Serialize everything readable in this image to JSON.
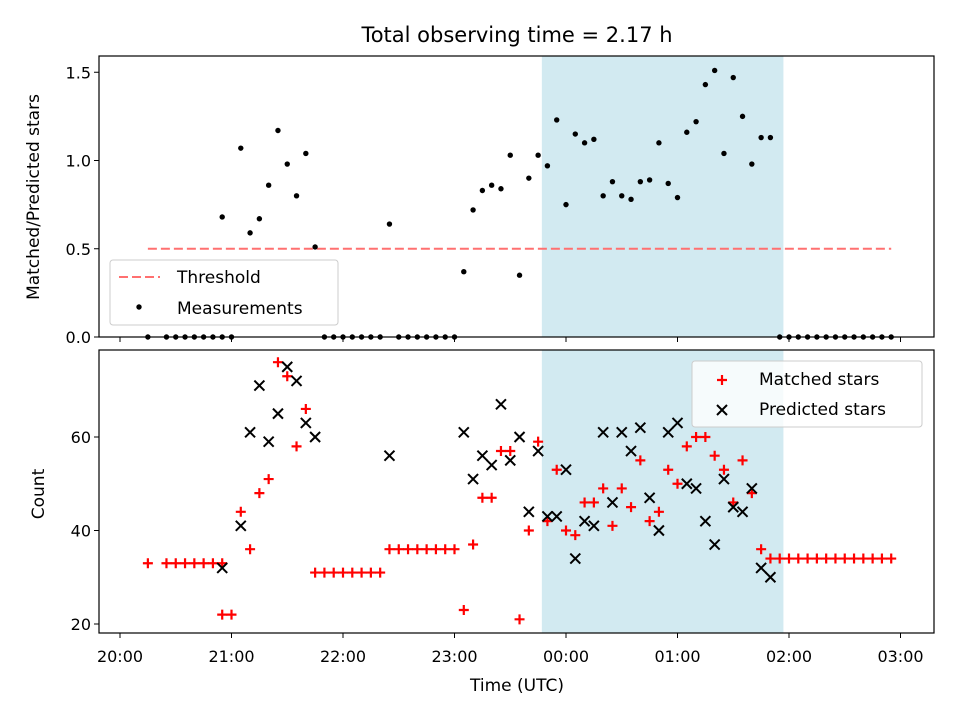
{
  "figure": {
    "title": "Total observing time = 2.17 h",
    "xlabel": "Time (UTC)",
    "xtick_labels": [
      "20:00",
      "21:00",
      "22:00",
      "23:00",
      "00:00",
      "01:00",
      "02:00",
      "03:00"
    ],
    "shade_color": "#add8e6",
    "xlim": [
      "20:00",
      "03:00"
    ],
    "shaded_interval": [
      "23:47",
      "01:57"
    ]
  },
  "chart_data": [
    {
      "type": "scatter",
      "ylabel": "Matched/Predicted stars",
      "ylim": [
        0,
        1.6
      ],
      "yticks": [
        "0.0",
        "0.5",
        "1.0",
        "1.5"
      ],
      "grid": false,
      "legend_position": "lower-left",
      "threshold": {
        "name": "Threshold",
        "value": 0.5,
        "color": "#ff7070",
        "style": "dashed",
        "x_range": [
          "20:15",
          "02:55"
        ]
      },
      "measurements": {
        "name": "Measurements",
        "color": "#000000",
        "points": [
          [
            "20:15",
            0.0
          ],
          [
            "20:25",
            0.0
          ],
          [
            "20:30",
            0.0
          ],
          [
            "20:35",
            0.0
          ],
          [
            "20:40",
            0.0
          ],
          [
            "20:45",
            0.0
          ],
          [
            "20:50",
            0.0
          ],
          [
            "20:55",
            0.0
          ],
          [
            "20:55",
            0.68
          ],
          [
            "21:00",
            0.0
          ],
          [
            "21:05",
            1.07
          ],
          [
            "21:10",
            0.59
          ],
          [
            "21:15",
            0.67
          ],
          [
            "21:20",
            0.86
          ],
          [
            "21:25",
            1.17
          ],
          [
            "21:30",
            0.98
          ],
          [
            "21:35",
            0.8
          ],
          [
            "21:40",
            1.04
          ],
          [
            "21:45",
            0.51
          ],
          [
            "21:50",
            0.0
          ],
          [
            "21:55",
            0.0
          ],
          [
            "22:00",
            0.0
          ],
          [
            "22:05",
            0.0
          ],
          [
            "22:10",
            0.0
          ],
          [
            "22:15",
            0.0
          ],
          [
            "22:20",
            0.0
          ],
          [
            "22:25",
            0.64
          ],
          [
            "22:30",
            0.0
          ],
          [
            "22:35",
            0.0
          ],
          [
            "22:40",
            0.0
          ],
          [
            "22:45",
            0.0
          ],
          [
            "22:50",
            0.0
          ],
          [
            "22:55",
            0.0
          ],
          [
            "23:00",
            0.0
          ],
          [
            "23:05",
            0.37
          ],
          [
            "23:10",
            0.72
          ],
          [
            "23:15",
            0.83
          ],
          [
            "23:20",
            0.86
          ],
          [
            "23:25",
            0.84
          ],
          [
            "23:30",
            1.03
          ],
          [
            "23:35",
            0.35
          ],
          [
            "23:40",
            0.9
          ],
          [
            "23:45",
            1.03
          ],
          [
            "23:50",
            0.97
          ],
          [
            "23:55",
            1.23
          ],
          [
            "00:00",
            0.75
          ],
          [
            "00:05",
            1.15
          ],
          [
            "00:10",
            1.1
          ],
          [
            "00:15",
            1.12
          ],
          [
            "00:20",
            0.8
          ],
          [
            "00:25",
            0.88
          ],
          [
            "00:30",
            0.8
          ],
          [
            "00:35",
            0.78
          ],
          [
            "00:40",
            0.88
          ],
          [
            "00:45",
            0.89
          ],
          [
            "00:50",
            1.1
          ],
          [
            "00:55",
            0.87
          ],
          [
            "01:00",
            0.79
          ],
          [
            "01:05",
            1.16
          ],
          [
            "01:10",
            1.22
          ],
          [
            "01:15",
            1.43
          ],
          [
            "01:20",
            1.51
          ],
          [
            "01:25",
            1.04
          ],
          [
            "01:30",
            1.47
          ],
          [
            "01:35",
            1.25
          ],
          [
            "01:40",
            0.98
          ],
          [
            "01:45",
            1.13
          ],
          [
            "01:50",
            1.13
          ],
          [
            "01:55",
            0.0
          ],
          [
            "02:00",
            0.0
          ],
          [
            "02:05",
            0.0
          ],
          [
            "02:10",
            0.0
          ],
          [
            "02:15",
            0.0
          ],
          [
            "02:20",
            0.0
          ],
          [
            "02:25",
            0.0
          ],
          [
            "02:30",
            0.0
          ],
          [
            "02:35",
            0.0
          ],
          [
            "02:40",
            0.0
          ],
          [
            "02:45",
            0.0
          ],
          [
            "02:50",
            0.0
          ],
          [
            "02:55",
            0.0
          ]
        ]
      }
    },
    {
      "type": "scatter",
      "ylabel": "Count",
      "ylim": [
        19,
        77
      ],
      "yticks": [
        "20",
        "40",
        "60"
      ],
      "grid": false,
      "legend_position": "top-right",
      "series": [
        {
          "name": "Matched stars",
          "marker": "plus",
          "color": "#ff0000",
          "points": [
            [
              "20:15",
              33
            ],
            [
              "20:25",
              33
            ],
            [
              "20:30",
              33
            ],
            [
              "20:35",
              33
            ],
            [
              "20:40",
              33
            ],
            [
              "20:45",
              33
            ],
            [
              "20:50",
              33
            ],
            [
              "20:55",
              33
            ],
            [
              "20:55",
              22
            ],
            [
              "21:00",
              22
            ],
            [
              "21:05",
              44
            ],
            [
              "21:10",
              36
            ],
            [
              "21:15",
              48
            ],
            [
              "21:20",
              51
            ],
            [
              "21:25",
              76
            ],
            [
              "21:30",
              73
            ],
            [
              "21:35",
              58
            ],
            [
              "21:40",
              66
            ],
            [
              "21:45",
              31
            ],
            [
              "21:50",
              31
            ],
            [
              "21:55",
              31
            ],
            [
              "22:00",
              31
            ],
            [
              "22:05",
              31
            ],
            [
              "22:10",
              31
            ],
            [
              "22:15",
              31
            ],
            [
              "22:20",
              31
            ],
            [
              "22:25",
              36
            ],
            [
              "22:30",
              36
            ],
            [
              "22:35",
              36
            ],
            [
              "22:40",
              36
            ],
            [
              "22:45",
              36
            ],
            [
              "22:50",
              36
            ],
            [
              "22:55",
              36
            ],
            [
              "23:00",
              36
            ],
            [
              "23:05",
              23
            ],
            [
              "23:10",
              37
            ],
            [
              "23:15",
              47
            ],
            [
              "23:20",
              47
            ],
            [
              "23:25",
              57
            ],
            [
              "23:30",
              57
            ],
            [
              "23:35",
              21
            ],
            [
              "23:40",
              40
            ],
            [
              "23:45",
              59
            ],
            [
              "23:50",
              42
            ],
            [
              "23:55",
              53
            ],
            [
              "00:00",
              40
            ],
            [
              "00:05",
              39
            ],
            [
              "00:10",
              46
            ],
            [
              "00:15",
              46
            ],
            [
              "00:20",
              49
            ],
            [
              "00:25",
              41
            ],
            [
              "00:30",
              49
            ],
            [
              "00:35",
              45
            ],
            [
              "00:40",
              55
            ],
            [
              "00:45",
              42
            ],
            [
              "00:50",
              44
            ],
            [
              "00:55",
              53
            ],
            [
              "01:00",
              50
            ],
            [
              "01:05",
              58
            ],
            [
              "01:10",
              60
            ],
            [
              "01:15",
              60
            ],
            [
              "01:20",
              56
            ],
            [
              "01:25",
              53
            ],
            [
              "01:30",
              46
            ],
            [
              "01:35",
              55
            ],
            [
              "01:40",
              48
            ],
            [
              "01:45",
              36
            ],
            [
              "01:50",
              34
            ],
            [
              "01:55",
              34
            ],
            [
              "02:00",
              34
            ],
            [
              "02:05",
              34
            ],
            [
              "02:10",
              34
            ],
            [
              "02:15",
              34
            ],
            [
              "02:20",
              34
            ],
            [
              "02:25",
              34
            ],
            [
              "02:30",
              34
            ],
            [
              "02:35",
              34
            ],
            [
              "02:40",
              34
            ],
            [
              "02:45",
              34
            ],
            [
              "02:50",
              34
            ],
            [
              "02:55",
              34
            ]
          ]
        },
        {
          "name": "Predicted stars",
          "marker": "x",
          "color": "#000000",
          "points": [
            [
              "20:55",
              32
            ],
            [
              "21:05",
              41
            ],
            [
              "21:10",
              61
            ],
            [
              "21:15",
              71
            ],
            [
              "21:20",
              59
            ],
            [
              "21:25",
              65
            ],
            [
              "21:30",
              75
            ],
            [
              "21:35",
              72
            ],
            [
              "21:40",
              63
            ],
            [
              "21:45",
              60
            ],
            [
              "22:25",
              56
            ],
            [
              "23:05",
              61
            ],
            [
              "23:10",
              51
            ],
            [
              "23:15",
              56
            ],
            [
              "23:20",
              54
            ],
            [
              "23:25",
              67
            ],
            [
              "23:30",
              55
            ],
            [
              "23:35",
              60
            ],
            [
              "23:40",
              44
            ],
            [
              "23:45",
              57
            ],
            [
              "23:50",
              43
            ],
            [
              "23:55",
              43
            ],
            [
              "00:00",
              53
            ],
            [
              "00:05",
              34
            ],
            [
              "00:10",
              42
            ],
            [
              "00:15",
              41
            ],
            [
              "00:20",
              61
            ],
            [
              "00:25",
              46
            ],
            [
              "00:30",
              61
            ],
            [
              "00:35",
              57
            ],
            [
              "00:40",
              62
            ],
            [
              "00:45",
              47
            ],
            [
              "00:50",
              40
            ],
            [
              "00:55",
              61
            ],
            [
              "01:00",
              63
            ],
            [
              "01:05",
              50
            ],
            [
              "01:10",
              49
            ],
            [
              "01:15",
              42
            ],
            [
              "01:20",
              37
            ],
            [
              "01:25",
              51
            ],
            [
              "01:30",
              45
            ],
            [
              "01:35",
              44
            ],
            [
              "01:40",
              49
            ],
            [
              "01:45",
              32
            ],
            [
              "01:50",
              30
            ]
          ]
        }
      ]
    }
  ]
}
